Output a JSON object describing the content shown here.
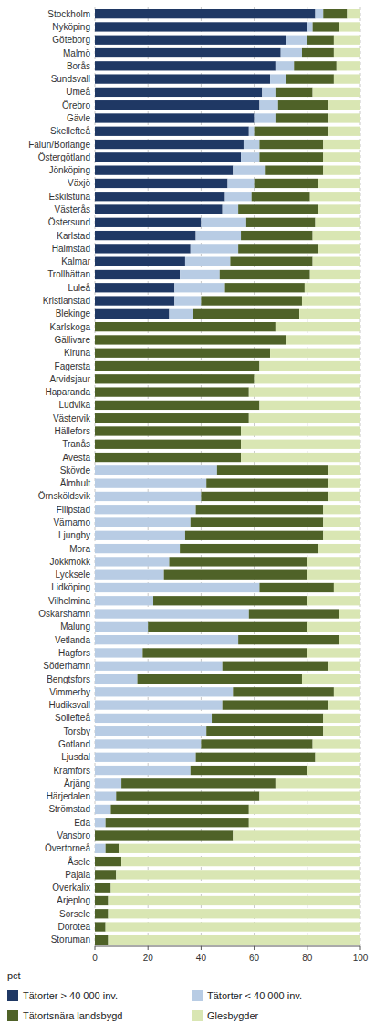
{
  "chart_data": {
    "type": "bar",
    "orientation": "horizontal",
    "stacked": true,
    "grid": true,
    "legend": "bottom",
    "xlabel": "pct",
    "xlim": [
      0,
      100
    ],
    "xticks": [
      0,
      20,
      40,
      60,
      80,
      100
    ],
    "categories": [
      "Stockholm",
      "Nyköping",
      "Göteborg",
      "Malmö",
      "Borås",
      "Sundsvall",
      "Umeå",
      "Örebro",
      "Gävle",
      "Skellefteå",
      "Falun/Borlänge",
      "Östergötland",
      "Jönköping",
      "Växjö",
      "Eskilstuna",
      "Västerås",
      "Östersund",
      "Karlstad",
      "Halmstad",
      "Kalmar",
      "Trollhättan",
      "Luleå",
      "Kristianstad",
      "Blekinge",
      "Karlskoga",
      "Gällivare",
      "Kiruna",
      "Fagersta",
      "Arvidsjaur",
      "Haparanda",
      "Ludvika",
      "Västervik",
      "Hällefors",
      "Tranås",
      "Avesta",
      "Skövde",
      "Älmhult",
      "Örnsköldsvik",
      "Filipstad",
      "Värnamo",
      "Ljungby",
      "Mora",
      "Jokkmokk",
      "Lycksele",
      "Lidköping",
      "Vilhelmina",
      "Oskarshamn",
      "Malung",
      "Vetlanda",
      "Hagfors",
      "Söderhamn",
      "Bengtsfors",
      "Vimmerby",
      "Hudiksvall",
      "Sollefteå",
      "Torsby",
      "Gotland",
      "Ljusdal",
      "Kramfors",
      "Ärjäng",
      "Härjedalen",
      "Strömstad",
      "Eda",
      "Vansbro",
      "Övertorneå",
      "Åsele",
      "Pajala",
      "Överkalix",
      "Arjeplog",
      "Sorsele",
      "Dorotea",
      "Storuman"
    ],
    "series": [
      {
        "name": "Tätorter > 40 000 inv.",
        "color": "#1f3864",
        "values": [
          83,
          80,
          72,
          70,
          68,
          66,
          63,
          62,
          60,
          58,
          56,
          55,
          52,
          50,
          49,
          48,
          40,
          38,
          36,
          34,
          32,
          30,
          30,
          28,
          0,
          0,
          0,
          0,
          0,
          0,
          0,
          0,
          0,
          0,
          0,
          0,
          0,
          0,
          0,
          0,
          0,
          0,
          0,
          0,
          0,
          0,
          0,
          0,
          0,
          0,
          0,
          0,
          0,
          0,
          0,
          0,
          0,
          0,
          0,
          0,
          0,
          0,
          0,
          0,
          0,
          0,
          0,
          0,
          0,
          0,
          0,
          0
        ]
      },
      {
        "name": "Tätorter < 40 000 inv.",
        "color": "#b8cce4",
        "values": [
          3,
          2,
          8,
          8,
          7,
          6,
          5,
          7,
          8,
          2,
          6,
          7,
          12,
          10,
          10,
          6,
          17,
          17,
          18,
          17,
          15,
          19,
          10,
          9,
          0,
          0,
          0,
          0,
          0,
          0,
          0,
          0,
          0,
          0,
          0,
          46,
          42,
          40,
          38,
          36,
          34,
          32,
          28,
          26,
          62,
          22,
          58,
          20,
          54,
          18,
          48,
          16,
          52,
          48,
          44,
          42,
          40,
          38,
          36,
          10,
          8,
          6,
          4,
          0,
          4,
          0,
          0,
          0,
          0,
          0,
          0,
          0
        ]
      },
      {
        "name": "Tätortsnära landsbygd",
        "color": "#4f6228",
        "values": [
          9,
          10,
          10,
          12,
          16,
          18,
          14,
          19,
          20,
          28,
          24,
          24,
          22,
          24,
          22,
          30,
          26,
          27,
          30,
          31,
          34,
          30,
          38,
          40,
          68,
          72,
          66,
          62,
          60,
          58,
          62,
          58,
          55,
          55,
          55,
          42,
          46,
          48,
          48,
          50,
          52,
          52,
          52,
          54,
          28,
          58,
          34,
          60,
          38,
          62,
          40,
          62,
          38,
          40,
          42,
          44,
          42,
          45,
          44,
          58,
          54,
          52,
          54,
          52,
          5,
          10,
          8,
          6,
          5,
          5,
          4,
          5
        ]
      },
      {
        "name": "Glesbygder",
        "color": "#d9e6b3",
        "values": [
          5,
          8,
          10,
          10,
          9,
          10,
          18,
          12,
          12,
          12,
          14,
          14,
          14,
          16,
          19,
          16,
          17,
          18,
          16,
          18,
          19,
          21,
          22,
          23,
          32,
          28,
          34,
          38,
          40,
          42,
          38,
          42,
          45,
          45,
          45,
          12,
          12,
          12,
          14,
          14,
          14,
          16,
          20,
          20,
          10,
          20,
          8,
          20,
          8,
          20,
          12,
          22,
          10,
          12,
          14,
          14,
          18,
          17,
          20,
          32,
          38,
          42,
          42,
          48,
          91,
          90,
          92,
          94,
          95,
          95,
          96,
          95
        ]
      }
    ]
  }
}
